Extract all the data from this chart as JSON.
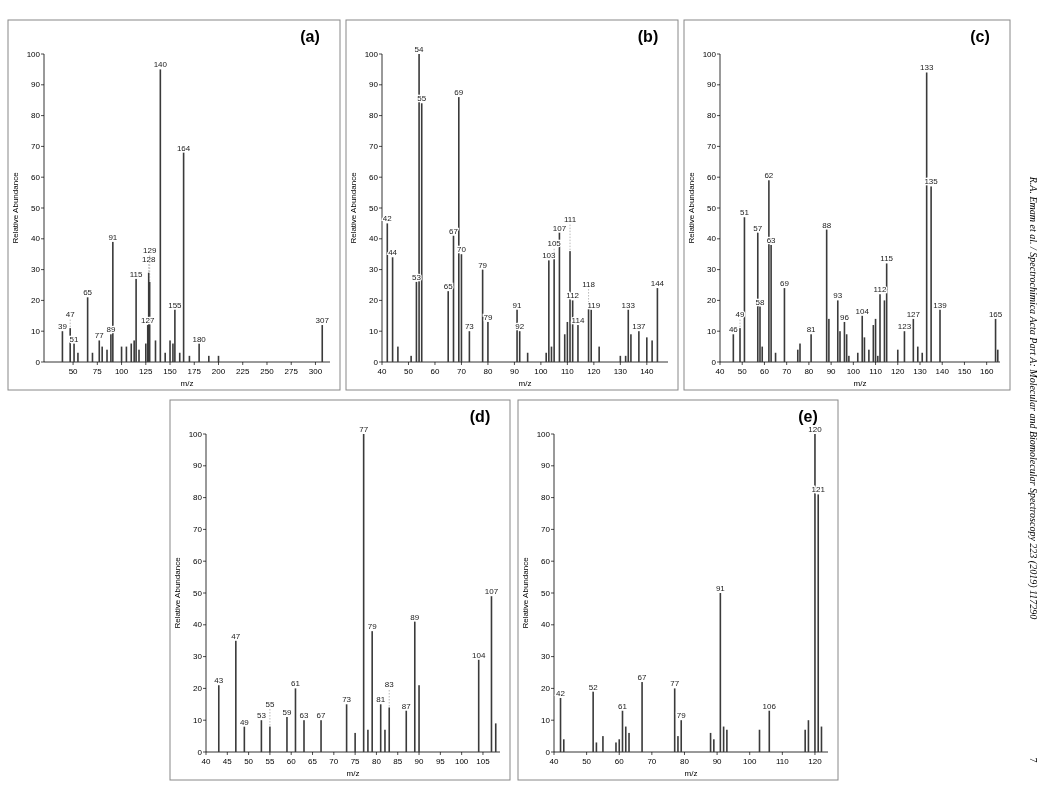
{
  "chart_data": [
    {
      "type": "bar",
      "title": "(a)",
      "xlabel": "m/z",
      "ylabel": "Relative Abundance",
      "color": "#3a3a3a",
      "xlim": [
        20,
        315
      ],
      "xticks": [
        50,
        75,
        100,
        125,
        150,
        175,
        200,
        225,
        250,
        275,
        300
      ],
      "ylim": [
        0,
        100
      ],
      "yticks": [
        0,
        10,
        20,
        30,
        40,
        50,
        60,
        70,
        80,
        90,
        100
      ],
      "x": [
        39,
        47,
        51,
        55,
        65,
        70,
        77,
        80,
        85,
        89,
        91,
        100,
        105,
        110,
        113,
        115,
        118,
        125,
        127,
        128,
        129,
        135,
        140,
        145,
        150,
        153,
        155,
        160,
        164,
        170,
        180,
        190,
        200,
        307
      ],
      "values": [
        10,
        11,
        6,
        3,
        21,
        3,
        7,
        5,
        4,
        9,
        39,
        5,
        5,
        6,
        7,
        27,
        4,
        6,
        12,
        29,
        26,
        7,
        95,
        3,
        7,
        6,
        17,
        3,
        68,
        2,
        6,
        2,
        2,
        12
      ],
      "annotations": [
        {
          "text": "39",
          "x": 39,
          "y": 10
        },
        {
          "text": "47",
          "x": 47,
          "y": 11
        },
        {
          "text": "51",
          "x": 51,
          "y": 6
        },
        {
          "text": "65",
          "x": 65,
          "y": 21
        },
        {
          "text": "77",
          "x": 77,
          "y": 7
        },
        {
          "text": "89",
          "x": 89,
          "y": 9
        },
        {
          "text": "91",
          "x": 91,
          "y": 39
        },
        {
          "text": "115",
          "x": 115,
          "y": 27
        },
        {
          "text": "128",
          "x": 128,
          "y": 29
        },
        {
          "text": "129",
          "x": 129,
          "y": 26
        },
        {
          "text": "127",
          "x": 127,
          "y": 12
        },
        {
          "text": "140",
          "x": 140,
          "y": 95
        },
        {
          "text": "155",
          "x": 155,
          "y": 17
        },
        {
          "text": "164",
          "x": 164,
          "y": 68
        },
        {
          "text": "180",
          "x": 180,
          "y": 6
        },
        {
          "text": "307",
          "x": 307,
          "y": 12
        }
      ]
    },
    {
      "type": "bar",
      "title": "(b)",
      "xlabel": "m/z",
      "ylabel": "Relative Abundance",
      "color": "#3a3a3a",
      "xlim": [
        40,
        148
      ],
      "xticks": [
        40,
        50,
        60,
        70,
        80,
        90,
        100,
        110,
        120,
        130,
        140
      ],
      "ylim": [
        0,
        100
      ],
      "yticks": [
        0,
        10,
        20,
        30,
        40,
        50,
        60,
        70,
        80,
        90,
        100
      ],
      "x": [
        42,
        44,
        46,
        51,
        53,
        54,
        55,
        65,
        67,
        69,
        70,
        73,
        78,
        80,
        91,
        92,
        95,
        102,
        103,
        104,
        105,
        107,
        109,
        110,
        111,
        112,
        114,
        118,
        119,
        122,
        130,
        132,
        133,
        134,
        137,
        140,
        142,
        144
      ],
      "values": [
        45,
        34,
        5,
        2,
        26,
        100,
        84,
        23,
        41,
        86,
        35,
        10,
        30,
        13,
        17,
        10,
        3,
        3,
        33,
        5,
        34,
        42,
        9,
        13,
        36,
        20,
        12,
        18,
        17,
        5,
        2,
        2,
        17,
        9,
        10,
        8,
        7,
        24
      ],
      "annotations": [
        {
          "text": "42",
          "x": 42,
          "y": 45
        },
        {
          "text": "44",
          "x": 44,
          "y": 34
        },
        {
          "text": "53",
          "x": 53,
          "y": 26
        },
        {
          "text": "54",
          "x": 54,
          "y": 100
        },
        {
          "text": "55",
          "x": 55,
          "y": 84
        },
        {
          "text": "65",
          "x": 65,
          "y": 23
        },
        {
          "text": "67",
          "x": 67,
          "y": 41
        },
        {
          "text": "69",
          "x": 69,
          "y": 86
        },
        {
          "text": "70",
          "x": 70,
          "y": 35
        },
        {
          "text": "73",
          "x": 73,
          "y": 10
        },
        {
          "text": "79",
          "x": 78,
          "y": 30
        },
        {
          "text": "79",
          "x": 80,
          "y": 13
        },
        {
          "text": "91",
          "x": 91,
          "y": 17
        },
        {
          "text": "92",
          "x": 92,
          "y": 10
        },
        {
          "text": "103",
          "x": 103,
          "y": 33
        },
        {
          "text": "105",
          "x": 105,
          "y": 34
        },
        {
          "text": "107",
          "x": 107,
          "y": 42
        },
        {
          "text": "111",
          "x": 111,
          "y": 36
        },
        {
          "text": "112",
          "x": 112,
          "y": 20
        },
        {
          "text": "114",
          "x": 114,
          "y": 12
        },
        {
          "text": "118",
          "x": 118,
          "y": 18
        },
        {
          "text": "119",
          "x": 120,
          "y": 17
        },
        {
          "text": "133",
          "x": 133,
          "y": 17
        },
        {
          "text": "137",
          "x": 137,
          "y": 10
        },
        {
          "text": "144",
          "x": 144,
          "y": 24
        }
      ]
    },
    {
      "type": "bar",
      "title": "(c)",
      "xlabel": "m/z",
      "ylabel": "Relative Abundance",
      "color": "#3a3a3a",
      "xlim": [
        40,
        166
      ],
      "xticks": [
        40,
        50,
        60,
        70,
        80,
        90,
        100,
        110,
        120,
        130,
        140,
        150,
        160
      ],
      "ylim": [
        0,
        100
      ],
      "yticks": [
        0,
        10,
        20,
        30,
        40,
        50,
        60,
        70,
        80,
        90,
        100
      ],
      "x": [
        46,
        49,
        51,
        57,
        58,
        59,
        62,
        63,
        65,
        69,
        75,
        76,
        81,
        88,
        89,
        93,
        94,
        96,
        97,
        98,
        102,
        104,
        105,
        107,
        109,
        110,
        111,
        112,
        114,
        115,
        120,
        123,
        127,
        129,
        131,
        133,
        135,
        139,
        164,
        165
      ],
      "values": [
        9,
        11,
        47,
        42,
        18,
        5,
        59,
        38,
        3,
        24,
        4,
        6,
        9,
        43,
        14,
        20,
        10,
        13,
        9,
        2,
        3,
        15,
        8,
        4,
        12,
        14,
        2,
        22,
        20,
        32,
        4,
        10,
        14,
        5,
        3,
        94,
        57,
        17,
        14,
        4
      ],
      "annotations": [
        {
          "text": "46",
          "x": 46,
          "y": 9
        },
        {
          "text": "49",
          "x": 49,
          "y": 11
        },
        {
          "text": "51",
          "x": 51,
          "y": 47
        },
        {
          "text": "57",
          "x": 57,
          "y": 42
        },
        {
          "text": "58",
          "x": 58,
          "y": 18
        },
        {
          "text": "62",
          "x": 62,
          "y": 59
        },
        {
          "text": "63",
          "x": 63,
          "y": 38
        },
        {
          "text": "69",
          "x": 69,
          "y": 24
        },
        {
          "text": "81",
          "x": 81,
          "y": 9
        },
        {
          "text": "88",
          "x": 88,
          "y": 43
        },
        {
          "text": "93",
          "x": 93,
          "y": 20
        },
        {
          "text": "96",
          "x": 96,
          "y": 13
        },
        {
          "text": "104",
          "x": 104,
          "y": 15
        },
        {
          "text": "112",
          "x": 112,
          "y": 22
        },
        {
          "text": "115",
          "x": 115,
          "y": 32
        },
        {
          "text": "123",
          "x": 123,
          "y": 10
        },
        {
          "text": "127",
          "x": 127,
          "y": 14
        },
        {
          "text": "133",
          "x": 133,
          "y": 94
        },
        {
          "text": "135",
          "x": 135,
          "y": 57
        },
        {
          "text": "139",
          "x": 139,
          "y": 17
        },
        {
          "text": "165",
          "x": 164,
          "y": 14
        },
        "R.A. Emam et al. / Spectrochimica Acta Part A: Molecular and Biomolecular Spectroscopy 223 (2019) 117290",
        "7"
      ]
    },
    {
      "type": "bar",
      "title": "(d)",
      "xlabel": "m/z",
      "ylabel": "Relative Abundance",
      "color": "#3a3a3a",
      "xlim": [
        40,
        109
      ],
      "xticks": [
        40,
        45,
        50,
        55,
        60,
        65,
        70,
        75,
        80,
        85,
        90,
        95,
        100,
        105
      ],
      "ylim": [
        0,
        100
      ],
      "yticks": [
        0,
        10,
        20,
        30,
        40,
        50,
        60,
        70,
        80,
        90,
        100
      ],
      "x": [
        43,
        47,
        49,
        53,
        55,
        59,
        61,
        63,
        67,
        73,
        75,
        77,
        78,
        79,
        81,
        82,
        83,
        87,
        89,
        90,
        104,
        107,
        108
      ],
      "values": [
        21,
        35,
        8,
        10,
        8,
        11,
        20,
        10,
        10,
        15,
        6,
        100,
        7,
        38,
        15,
        7,
        14,
        13,
        41,
        21,
        29,
        49,
        9
      ],
      "annotations": [
        {
          "text": "43",
          "x": 43,
          "y": 21
        },
        {
          "text": "47",
          "x": 47,
          "y": 35
        },
        {
          "text": "49",
          "x": 49,
          "y": 8
        },
        {
          "text": "53",
          "x": 53,
          "y": 10
        },
        {
          "text": "55",
          "x": 55,
          "y": 8
        },
        {
          "text": "59",
          "x": 59,
          "y": 11
        },
        {
          "text": "61",
          "x": 61,
          "y": 20
        },
        {
          "text": "63",
          "x": 63,
          "y": 10
        },
        {
          "text": "67",
          "x": 67,
          "y": 10
        },
        {
          "text": "73",
          "x": 73,
          "y": 15
        },
        {
          "text": "77",
          "x": 77,
          "y": 100
        },
        {
          "text": "79",
          "x": 79,
          "y": 38
        },
        {
          "text": "81",
          "x": 81,
          "y": 15
        },
        {
          "text": "83",
          "x": 83,
          "y": 14
        },
        {
          "text": "87",
          "x": 87,
          "y": 13
        },
        {
          "text": "89",
          "x": 89,
          "y": 41
        },
        {
          "text": "104",
          "x": 104,
          "y": 29
        },
        {
          "text": "107",
          "x": 107,
          "y": 49
        }
      ]
    },
    {
      "type": "bar",
      "title": "(e)",
      "xlabel": "m/z",
      "ylabel": "Relative Abundance",
      "color": "#3a3a3a",
      "xlim": [
        40,
        124
      ],
      "xticks": [
        40,
        50,
        60,
        70,
        80,
        90,
        100,
        110,
        120
      ],
      "ylim": [
        0,
        100
      ],
      "yticks": [
        0,
        10,
        20,
        30,
        40,
        50,
        60,
        70,
        80,
        90,
        100
      ],
      "x": [
        42,
        43,
        52,
        53,
        55,
        59,
        60,
        61,
        62,
        63,
        67,
        77,
        78,
        79,
        88,
        89,
        91,
        92,
        93,
        103,
        106,
        117,
        118,
        120,
        121,
        122
      ],
      "values": [
        17,
        4,
        19,
        3,
        5,
        3,
        4,
        13,
        8,
        6,
        22,
        20,
        5,
        10,
        6,
        4,
        50,
        8,
        7,
        7,
        13,
        7,
        10,
        100,
        81,
        8
      ],
      "annotations": [
        {
          "text": "42",
          "x": 42,
          "y": 17
        },
        {
          "text": "52",
          "x": 52,
          "y": 19
        },
        {
          "text": "61",
          "x": 61,
          "y": 13
        },
        {
          "text": "67",
          "x": 67,
          "y": 22
        },
        {
          "text": "77",
          "x": 77,
          "y": 20
        },
        {
          "text": "79",
          "x": 79,
          "y": 10
        },
        {
          "text": "91",
          "x": 91,
          "y": 50
        },
        {
          "text": "106",
          "x": 106,
          "y": 13
        },
        {
          "text": "120",
          "x": 120,
          "y": 100
        },
        {
          "text": "121",
          "x": 121,
          "y": 81
        }
      ]
    }
  ]
}
